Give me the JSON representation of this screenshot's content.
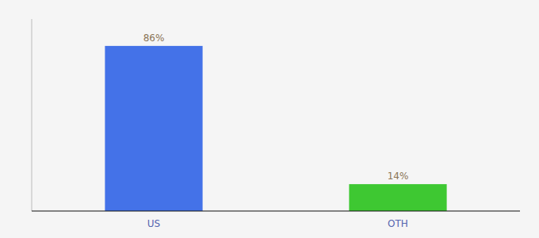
{
  "chart_data": {
    "type": "bar",
    "categories": [
      "US",
      "OTH"
    ],
    "values": [
      86,
      14
    ],
    "value_labels": [
      "86%",
      "14%"
    ],
    "colors": [
      "#4472e8",
      "#3ec832"
    ],
    "ylim": [
      0,
      100
    ],
    "data_labels": true,
    "tick_labels": "x",
    "grid": false
  }
}
